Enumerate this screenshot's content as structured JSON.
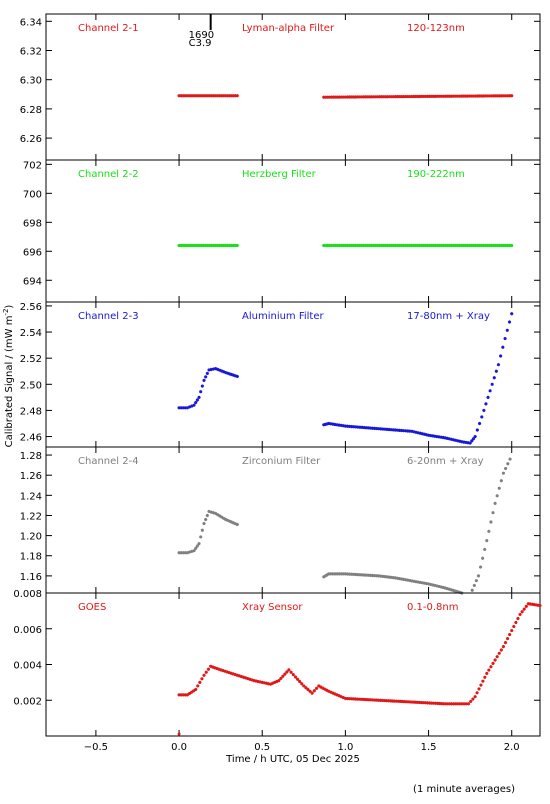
{
  "x_axis": {
    "label": "Time / h UTC, 05 Dec 2025",
    "ticks": [
      "−0.5",
      "0.0",
      "0.5",
      "1.0",
      "1.5",
      "2.0"
    ],
    "tick_values": [
      -0.5,
      0.0,
      0.5,
      1.0,
      1.5,
      2.0
    ],
    "range": [
      -0.8,
      2.17
    ]
  },
  "ylabel": "Calibrated Signal / (mW m",
  "ylabel_sup": "-2",
  "ylabel_close": ")",
  "footnote": "(1 minute averages)",
  "marker": {
    "x": 0.19,
    "label_top": "1690",
    "label_bottom": "C3.9"
  },
  "panels": [
    {
      "channel": "Channel 2-1",
      "filter": "Lyman-alpha Filter",
      "band": "120-123nm",
      "color": "#e01818",
      "ylim": [
        6.245,
        6.345
      ],
      "ticks": [
        6.26,
        6.28,
        6.3,
        6.32,
        6.34
      ],
      "tick_labels": [
        "6.26",
        "6.28",
        "6.30",
        "6.32",
        "6.34"
      ]
    },
    {
      "channel": "Channel 2-2",
      "filter": "Herzberg Filter",
      "band": "190-222nm",
      "color": "#18e018",
      "ylim": [
        692.5,
        702.3
      ],
      "ticks": [
        694,
        696,
        698,
        700,
        702
      ],
      "tick_labels": [
        "694",
        "696",
        "698",
        "700",
        "702"
      ]
    },
    {
      "channel": "Channel 2-3",
      "filter": "Aluminium Filter",
      "band": "17-80nm + Xray",
      "color": "#1818d8",
      "ylim": [
        2.452,
        2.563
      ],
      "ticks": [
        2.46,
        2.48,
        2.5,
        2.52,
        2.54,
        2.56
      ],
      "tick_labels": [
        "2.46",
        "2.48",
        "2.50",
        "2.52",
        "2.54",
        "2.56"
      ]
    },
    {
      "channel": "Channel 2-4",
      "filter": "Zirconium Filter",
      "band": "6-20nm + Xray",
      "color": "#808080",
      "ylim": [
        1.143,
        1.288
      ],
      "ticks": [
        1.16,
        1.18,
        1.2,
        1.22,
        1.24,
        1.26,
        1.28
      ],
      "tick_labels": [
        "1.16",
        "1.18",
        "1.20",
        "1.22",
        "1.24",
        "1.26",
        "1.28"
      ]
    },
    {
      "channel": "GOES",
      "filter": "Xray Sensor",
      "band": "0.1-0.8nm",
      "color": "#e01818",
      "ylim": [
        0.0,
        0.008
      ],
      "ticks": [
        0.002,
        0.004,
        0.006,
        0.008
      ],
      "tick_labels": [
        "0.002",
        "0.004",
        "0.006",
        "0.008"
      ]
    }
  ],
  "chart_data": [
    {
      "type": "line",
      "title": "Channel 2-1",
      "xlabel": "",
      "ylabel": "",
      "series": [
        {
          "x": [
            0.0,
            0.35
          ],
          "y": [
            6.289,
            6.289
          ]
        },
        {
          "x": [
            0.87,
            2.0
          ],
          "y": [
            6.288,
            6.289
          ]
        }
      ]
    },
    {
      "type": "line",
      "title": "Channel 2-2",
      "xlabel": "",
      "ylabel": "",
      "series": [
        {
          "x": [
            0.0,
            0.35
          ],
          "y": [
            696.4,
            696.4
          ]
        },
        {
          "x": [
            0.87,
            2.0
          ],
          "y": [
            696.4,
            696.4
          ]
        }
      ]
    },
    {
      "type": "scatter",
      "title": "Channel 2-3",
      "xlabel": "",
      "ylabel": "",
      "series": [
        {
          "x": [
            0.0,
            0.05,
            0.09,
            0.12,
            0.15,
            0.18,
            0.22,
            0.28,
            0.35
          ],
          "y": [
            2.482,
            2.482,
            2.484,
            2.49,
            2.503,
            2.511,
            2.512,
            2.509,
            2.506
          ]
        },
        {
          "x": [
            0.87,
            0.9,
            1.0,
            1.1,
            1.2,
            1.3,
            1.4,
            1.5,
            1.6,
            1.7,
            1.75,
            1.78,
            1.82,
            1.87,
            1.92,
            1.96,
            2.0
          ],
          "y": [
            2.469,
            2.47,
            2.468,
            2.467,
            2.466,
            2.465,
            2.464,
            2.461,
            2.459,
            2.456,
            2.455,
            2.46,
            2.475,
            2.495,
            2.515,
            2.535,
            2.554
          ]
        }
      ]
    },
    {
      "type": "scatter",
      "title": "Channel 2-4",
      "xlabel": "",
      "ylabel": "",
      "series": [
        {
          "x": [
            0.0,
            0.05,
            0.09,
            0.12,
            0.15,
            0.18,
            0.22,
            0.28,
            0.35
          ],
          "y": [
            1.183,
            1.183,
            1.185,
            1.192,
            1.212,
            1.224,
            1.222,
            1.216,
            1.211
          ]
        },
        {
          "x": [
            0.87,
            0.9,
            1.0,
            1.1,
            1.2,
            1.3,
            1.4,
            1.5,
            1.6,
            1.7,
            1.75,
            1.8,
            1.85,
            1.9,
            1.95,
            1.99
          ],
          "y": [
            1.159,
            1.162,
            1.162,
            1.161,
            1.16,
            1.158,
            1.155,
            1.152,
            1.148,
            1.143,
            1.141,
            1.16,
            1.195,
            1.232,
            1.262,
            1.276
          ]
        }
      ]
    },
    {
      "type": "line",
      "title": "GOES",
      "xlabel": "Time / h UTC, 05 Dec 2025",
      "ylabel": "",
      "series": [
        {
          "x": [
            0.0,
            0.05,
            0.1,
            0.15,
            0.19,
            0.25,
            0.35,
            0.45,
            0.55,
            0.6,
            0.66,
            0.7,
            0.75,
            0.8,
            0.84,
            0.9,
            1.0,
            1.2,
            1.4,
            1.6,
            1.7,
            1.74,
            1.78,
            1.85,
            1.95,
            2.05,
            2.1,
            2.17
          ],
          "y": [
            0.0023,
            0.0023,
            0.0026,
            0.0034,
            0.0039,
            0.0037,
            0.0034,
            0.0031,
            0.0029,
            0.0031,
            0.0037,
            0.0033,
            0.0028,
            0.0024,
            0.0028,
            0.0025,
            0.0021,
            0.002,
            0.0019,
            0.0018,
            0.0018,
            0.0018,
            0.0022,
            0.0035,
            0.005,
            0.0068,
            0.0074,
            0.0073
          ]
        }
      ]
    }
  ]
}
